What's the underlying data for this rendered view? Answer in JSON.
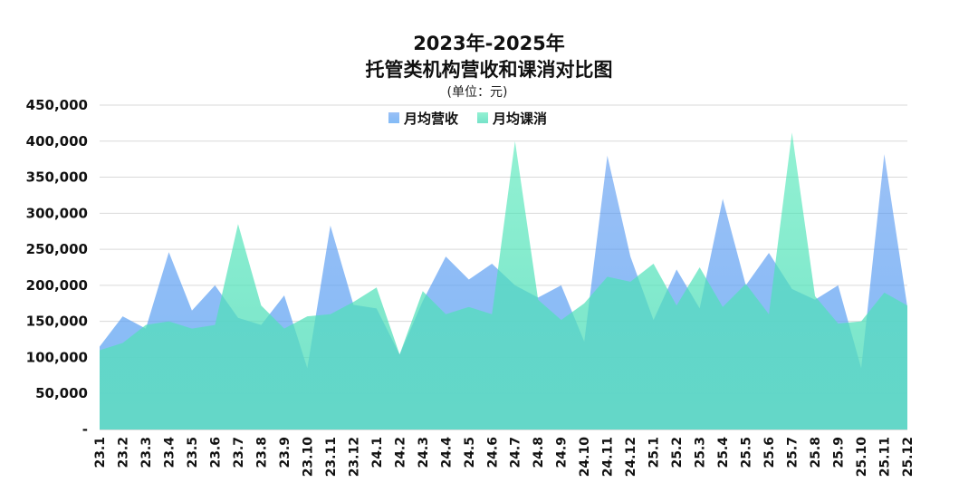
{
  "chart_data": {
    "type": "area",
    "title_line1": "2023年-2025年",
    "title_line2": "托管类机构营收和课消对比图",
    "unit": "(单位：元)",
    "x": [
      "23.1",
      "23.2",
      "23.3",
      "23.4",
      "23.5",
      "23.6",
      "23.7",
      "23.8",
      "23.9",
      "23.10",
      "23.11",
      "23.12",
      "24.1",
      "24.2",
      "24.3",
      "24.4",
      "24.5",
      "24.6",
      "24.7",
      "24.8",
      "24.9",
      "24.10",
      "24.11",
      "24.12",
      "25.1",
      "25.2",
      "25.3",
      "25.4",
      "25.5",
      "25.6",
      "25.7",
      "25.8",
      "25.9",
      "25.10",
      "25.11",
      "25.12"
    ],
    "y_ticks": [
      "-",
      "50,000",
      "100,000",
      "150,000",
      "200,000",
      "250,000",
      "300,000",
      "350,000",
      "400,000",
      "450,000"
    ],
    "ylim": [
      0,
      450000
    ],
    "grid": true,
    "legend_position": "top-center",
    "series": [
      {
        "name": "月均营收",
        "color": "#6ea8f0",
        "values": [
          115000,
          157000,
          140000,
          246000,
          165000,
          200000,
          155000,
          145000,
          186000,
          85000,
          283000,
          173000,
          168000,
          104000,
          178000,
          240000,
          208000,
          230000,
          200000,
          183000,
          200000,
          122000,
          380000,
          240000,
          152000,
          222000,
          168000,
          320000,
          200000,
          245000,
          195000,
          180000,
          200000,
          85000,
          382000,
          170000
        ]
      },
      {
        "name": "月均课消",
        "color": "#5ee8bd",
        "values": [
          110000,
          120000,
          145000,
          150000,
          140000,
          145000,
          285000,
          172000,
          140000,
          157000,
          160000,
          177000,
          197000,
          104000,
          192000,
          160000,
          170000,
          160000,
          400000,
          180000,
          152000,
          175000,
          212000,
          205000,
          230000,
          172000,
          225000,
          170000,
          202000,
          160000,
          412000,
          185000,
          147000,
          150000,
          190000,
          172000
        ]
      }
    ]
  }
}
